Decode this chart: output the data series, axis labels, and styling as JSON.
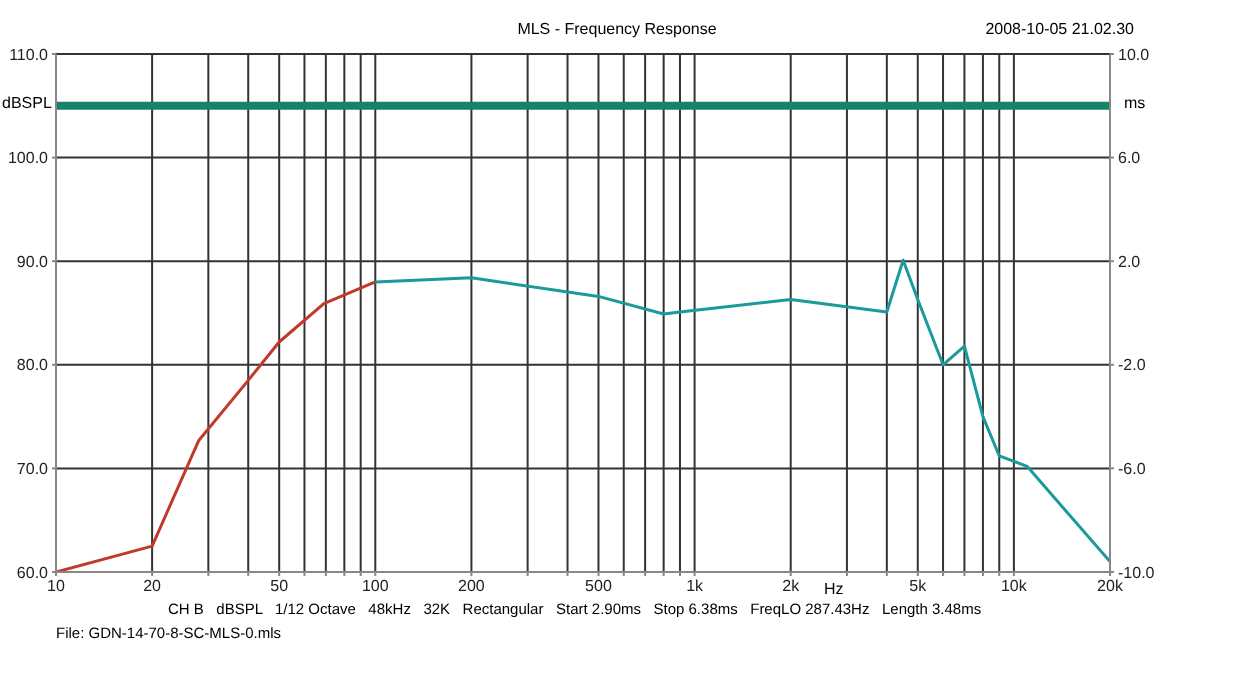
{
  "chart_data": {
    "type": "line",
    "title": "MLS - Frequency Response",
    "xlabel": "Hz",
    "ylabel": "dBSPL",
    "y2label": "ms",
    "annotations": [
      "2008-10-05 21.02.30",
      "CH B   dBSPL   1/12 Octave   48kHz   32K   Rectangular   Start 2.90ms   Stop 6.38ms   FreqLO 287.43Hz   Length 3.48ms",
      "File: GDN-14-70-8-SC-MLS-0.mls"
    ],
    "log": "x",
    "grid": true,
    "marker": "none",
    "line_style": "solid",
    "xlim": [
      10,
      20000
    ],
    "xticks": [
      10,
      20,
      {
        "value": 30,
        "label": null
      },
      {
        "value": 40,
        "label": null
      },
      50,
      {
        "value": 60,
        "label": null
      },
      {
        "value": 70,
        "label": null
      },
      {
        "value": 80,
        "label": null
      },
      {
        "value": 90,
        "label": null
      },
      100,
      200,
      {
        "value": 300,
        "label": null
      },
      {
        "value": 400,
        "label": null
      },
      500,
      {
        "value": 600,
        "label": null
      },
      {
        "value": 700,
        "label": null
      },
      {
        "value": 800,
        "label": null
      },
      {
        "value": 900,
        "label": null
      },
      {
        "value": 1000,
        "label": "1k"
      },
      {
        "value": 2000,
        "label": "2k"
      },
      {
        "value": 3000,
        "label": null
      },
      {
        "value": 4000,
        "label": null
      },
      {
        "value": 5000,
        "label": "5k"
      },
      {
        "value": 6000,
        "label": null
      },
      {
        "value": 7000,
        "label": null
      },
      {
        "value": 8000,
        "label": null
      },
      {
        "value": 9000,
        "label": null
      },
      {
        "value": 10000,
        "label": "10k"
      },
      {
        "value": 20000,
        "label": "20k"
      }
    ],
    "ylim": [
      60,
      110
    ],
    "yticks": [
      {
        "value": 60,
        "label": "60.0"
      },
      {
        "value": 70,
        "label": "70.0"
      },
      {
        "value": 80,
        "label": "80.0"
      },
      {
        "value": 90,
        "label": "90.0"
      },
      {
        "value": 100,
        "label": "100.0"
      },
      {
        "value": 110,
        "label": "110.0"
      }
    ],
    "y2lim": [
      -10,
      10
    ],
    "y2ticks": [
      {
        "value": -10,
        "label": "-10.0"
      },
      {
        "value": -6,
        "label": "-6.0"
      },
      {
        "value": -2,
        "label": "-2.0"
      },
      {
        "value": 2,
        "label": "2.0"
      },
      {
        "value": 6,
        "label": "6.0"
      },
      {
        "value": 10,
        "label": "10.0"
      }
    ],
    "series": [
      {
        "color": "#c0392b",
        "x": [
          10,
          20,
          28,
          40,
          50,
          69,
          100
        ],
        "values": [
          60,
          62.5,
          72.7,
          78.5,
          82.2,
          85.9,
          88
        ]
      },
      {
        "color": "#1a9a9a",
        "x": [
          100,
          200,
          500,
          800,
          900,
          2000,
          4000,
          4500,
          5000,
          6000,
          7000,
          8000,
          9000,
          11000,
          20000
        ],
        "values": [
          88,
          88.4,
          86.6,
          84.9,
          85.1,
          86.3,
          85.1,
          90.1,
          86.3,
          80,
          81.8,
          75,
          71.2,
          70.2,
          61
        ]
      },
      {
        "color": "#17826a",
        "axis": "y2",
        "x": [
          10,
          20000
        ],
        "values": [
          8,
          8
        ]
      }
    ]
  }
}
